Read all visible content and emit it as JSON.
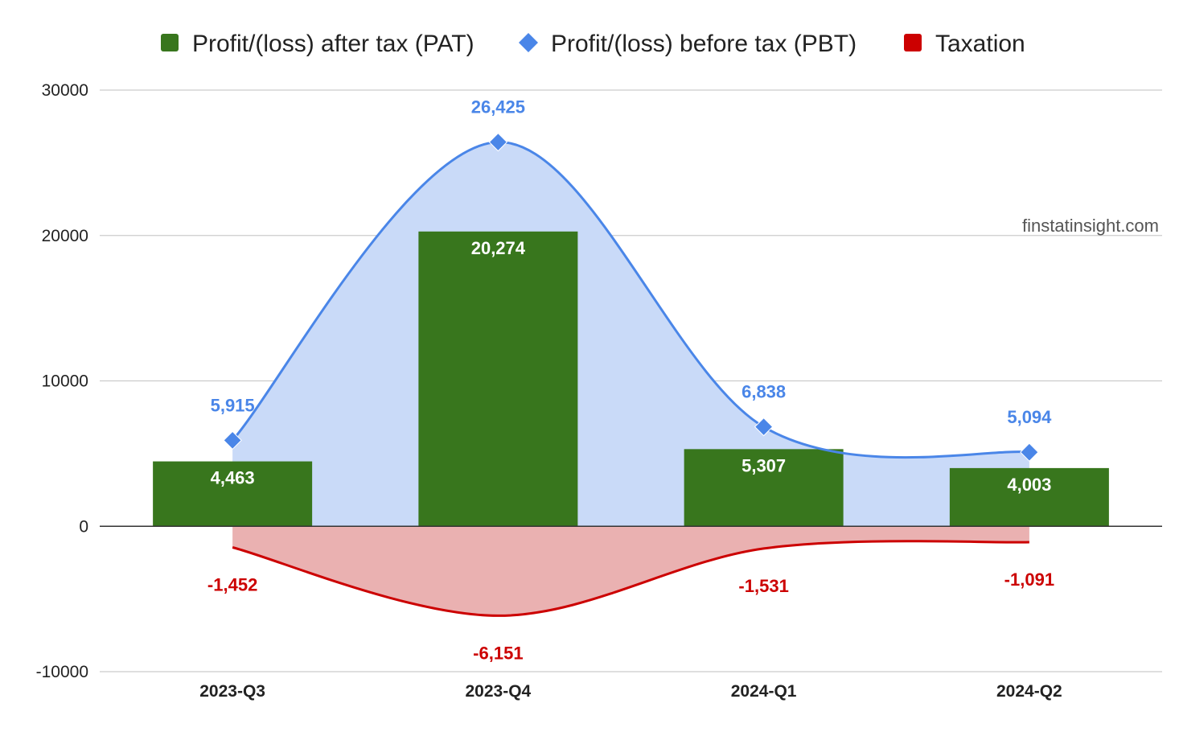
{
  "watermark": "finstatinsight.com",
  "chart_data": {
    "type": "bar",
    "categories": [
      "2023-Q3",
      "2023-Q4",
      "2024-Q1",
      "2024-Q2"
    ],
    "ylim": [
      -10000,
      30000
    ],
    "yticks": [
      -10000,
      0,
      10000,
      20000,
      30000
    ],
    "ytick_labels": [
      "-10000",
      "0",
      "10000",
      "20000",
      "30000"
    ],
    "grid": true,
    "legend_position": "top",
    "series": [
      {
        "name": "Profit/(loss) after tax (PAT)",
        "kind": "bar",
        "color": "#38761d",
        "label_color": "#ffffff",
        "values": [
          4463,
          20274,
          5307,
          4003
        ],
        "labels": [
          "4,463",
          "20,274",
          "5,307",
          "4,003"
        ]
      },
      {
        "name": "Profit/(loss) before tax (PBT)",
        "kind": "area-smooth",
        "color": "#4a86e8",
        "fill_color": "#c9daf8",
        "marker": "diamond",
        "values": [
          5915,
          26425,
          6838,
          5094
        ],
        "labels": [
          "5,915",
          "26,425",
          "6,838",
          "5,094"
        ]
      },
      {
        "name": "Taxation",
        "kind": "area-smooth",
        "color": "#cc0000",
        "fill_color": "#eab1b1",
        "marker": "none",
        "values": [
          -1452,
          -6151,
          -1531,
          -1091
        ],
        "labels": [
          "-1,452",
          "-6,151",
          "-1,531",
          "-1,091"
        ]
      }
    ]
  }
}
